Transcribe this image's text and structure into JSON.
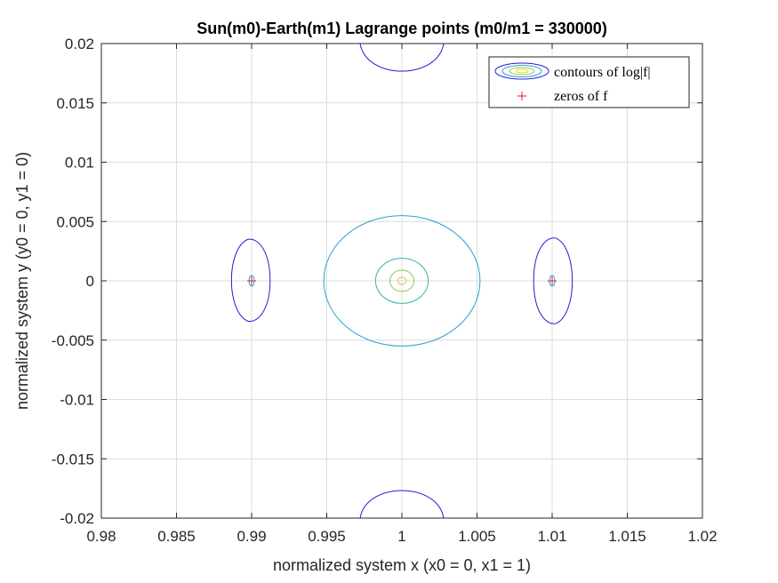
{
  "chart_data": {
    "type": "scatter",
    "title": "Sun(m0)-Earth(m1) Lagrange points (m0/m1 = 330000)",
    "xlabel": "normalized system x (x0 = 0, x1 = 1)",
    "ylabel": "normalized system y (y0 = 0, y1 = 0)",
    "xlim": [
      0.98,
      1.02
    ],
    "ylim": [
      -0.02,
      0.02
    ],
    "xticks": [
      0.98,
      0.985,
      0.99,
      0.995,
      1,
      1.005,
      1.01,
      1.015,
      1.02
    ],
    "xtick_labels": [
      "0.98",
      "0.985",
      "0.99",
      "0.995",
      "1",
      "1.005",
      "1.01",
      "1.015",
      "1.02"
    ],
    "yticks": [
      0.02,
      0.015,
      0.01,
      0.005,
      0,
      -0.005,
      -0.01,
      -0.015,
      -0.02
    ],
    "ytick_labels": [
      "0.02",
      "0.015",
      "0.01",
      "0.005",
      "0",
      "-0.005",
      "-0.01",
      "-0.015",
      "-0.02"
    ],
    "grid": true,
    "legend_position": "top-right",
    "legend": [
      {
        "label": "contours of log|f|",
        "marker": "contour-ellipses"
      },
      {
        "label": "zeros of f",
        "marker": "+",
        "color": "#e31a1c"
      }
    ],
    "contours": [
      {
        "color": "#1f1fd6",
        "cx": 0.9899,
        "cy": 0.0,
        "rx": 0.0014,
        "ry_top": 0.0035,
        "ry_bottom": 0.0034,
        "shape": "d-left"
      },
      {
        "color": "#1f1fd6",
        "cx": 1.0101,
        "cy": 0.0,
        "rx": 0.0014,
        "ry_top": 0.0036,
        "ry_bottom": 0.0036,
        "shape": "d-right"
      },
      {
        "color": "#1f1fd6",
        "cx": 1.0,
        "cy": 0.0175,
        "rx": 0.0011,
        "ry": 0.0,
        "shape": "arc-top"
      },
      {
        "color": "#1f1fd6",
        "cx": 1.0,
        "cy": -0.0175,
        "rx": 0.0011,
        "ry": 0.0,
        "shape": "arc-bottom"
      },
      {
        "color": "#2a9fd6",
        "cx": 1.0,
        "cy": 0.0,
        "rx": 0.0052,
        "ry": 0.0055,
        "shape": "ellipse"
      },
      {
        "color": "#3fb5a0",
        "cx": 1.0,
        "cy": 0.0,
        "rx": 0.00175,
        "ry": 0.0019,
        "shape": "ellipse"
      },
      {
        "color": "#8fc84a",
        "cx": 1.0,
        "cy": 0.0,
        "rx": 0.0008,
        "ry": 0.0009,
        "shape": "ellipse"
      },
      {
        "color": "#e8b830",
        "cx": 1.0,
        "cy": 0.0,
        "rx": 0.00028,
        "ry": 0.0003,
        "shape": "ellipse"
      }
    ],
    "zeros": [
      {
        "x": 0.99,
        "y": 0.0
      },
      {
        "x": 1.01,
        "y": 0.0
      }
    ],
    "zero_color": "#e31a1c"
  }
}
